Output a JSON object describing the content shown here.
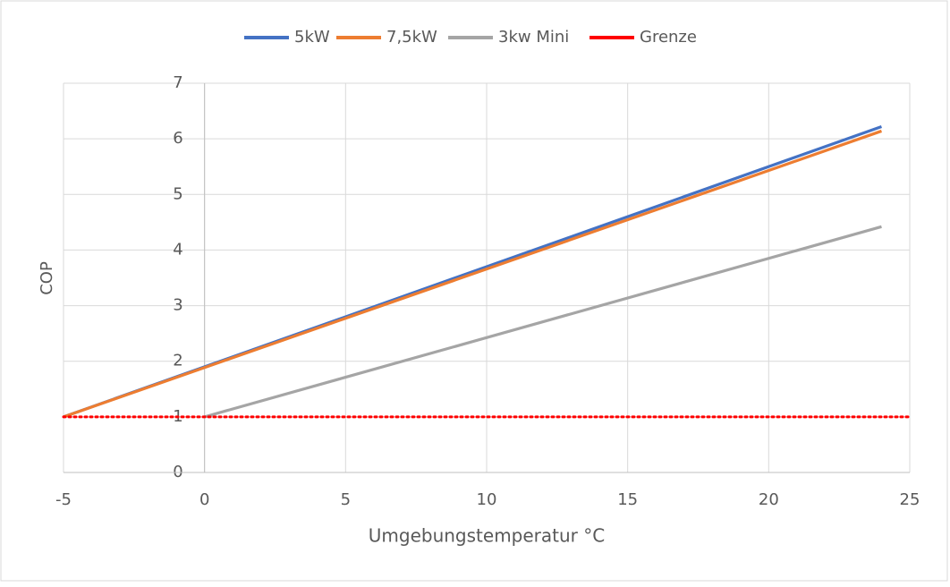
{
  "chart_data": {
    "type": "line",
    "xlabel": "Umgebungstemperatur °C",
    "ylabel": "COP",
    "xlim": [
      -5,
      25
    ],
    "xticks": [
      -5,
      0,
      5,
      10,
      15,
      20,
      25
    ],
    "ylim": [
      0,
      7
    ],
    "yticks": [
      0,
      1,
      2,
      3,
      4,
      5,
      6,
      7
    ],
    "grid": true,
    "legend": "top",
    "series": [
      {
        "name": "5kW",
        "color": "#4472c4",
        "x": [
          -5,
          24
        ],
        "values": [
          1,
          6.22
        ]
      },
      {
        "name": "7,5kW",
        "color": "#ed7d31",
        "x": [
          -5,
          24
        ],
        "values": [
          1,
          6.14
        ]
      },
      {
        "name": "3kw Mini",
        "color": "#a5a5a5",
        "x": [
          0,
          24
        ],
        "values": [
          1,
          4.42
        ]
      },
      {
        "name": "Grenze",
        "color": "#ff0000",
        "x": [
          -5,
          25
        ],
        "values": [
          1,
          1
        ],
        "dotted": true
      }
    ]
  }
}
